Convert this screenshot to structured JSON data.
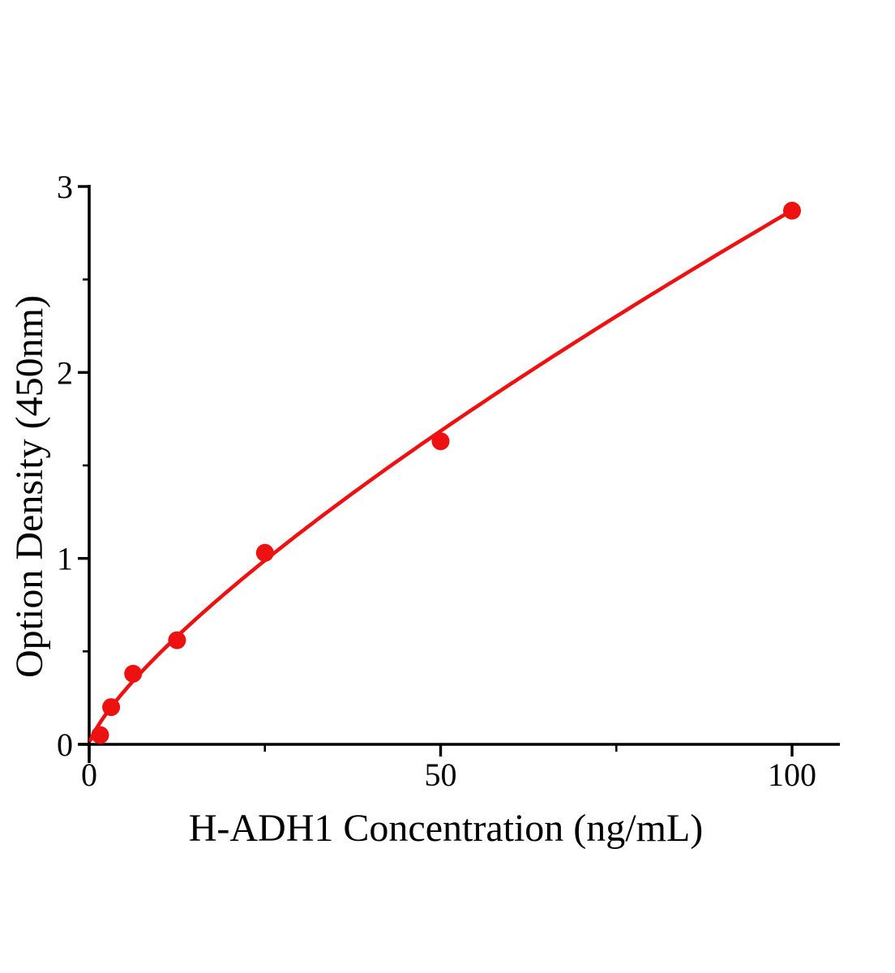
{
  "chart_data": {
    "type": "scatter",
    "title": "",
    "xlabel": "H-ADH1 Concentration (ng/mL)",
    "ylabel": "Option Density (450nm)",
    "points": [
      {
        "x": 1.5625,
        "y": 0.05
      },
      {
        "x": 3.125,
        "y": 0.2
      },
      {
        "x": 6.25,
        "y": 0.38
      },
      {
        "x": 12.5,
        "y": 0.56
      },
      {
        "x": 25,
        "y": 1.03
      },
      {
        "x": 50,
        "y": 1.63
      },
      {
        "x": 100,
        "y": 2.87
      }
    ],
    "trendline": {
      "type": "power",
      "a": 0.0832,
      "b": 0.769,
      "x_start": 0.18,
      "x_end": 100
    },
    "xlim": [
      0,
      107
    ],
    "ylim": [
      0,
      3.05
    ],
    "x_ticks": {
      "major": [
        {
          "value": 0,
          "label": "0"
        },
        {
          "value": 50,
          "label": "50"
        },
        {
          "value": 100,
          "label": "100"
        }
      ],
      "minor": [
        25,
        75
      ]
    },
    "y_ticks": {
      "major": [
        {
          "value": 0,
          "label": "0"
        },
        {
          "value": 1,
          "label": "1"
        },
        {
          "value": 2,
          "label": "2"
        },
        {
          "value": 3,
          "label": "3"
        }
      ],
      "minor": [
        0.5,
        1.5,
        2.5
      ]
    },
    "marker": "circle",
    "grid": false,
    "legend": null,
    "colors": {
      "series": "#ee1111",
      "axis": "#000000",
      "text": "#000000",
      "background": "#ffffff"
    }
  }
}
